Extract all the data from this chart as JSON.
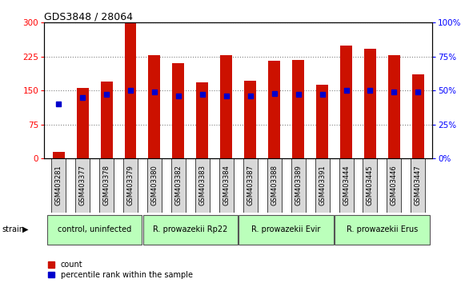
{
  "title": "GDS3848 / 28064",
  "samples": [
    "GSM403281",
    "GSM403377",
    "GSM403378",
    "GSM403379",
    "GSM403380",
    "GSM403382",
    "GSM403383",
    "GSM403384",
    "GSM403387",
    "GSM403388",
    "GSM403389",
    "GSM403391",
    "GSM403444",
    "GSM403445",
    "GSM403446",
    "GSM403447"
  ],
  "counts": [
    15,
    155,
    170,
    298,
    228,
    210,
    168,
    228,
    172,
    215,
    218,
    162,
    250,
    242,
    228,
    185
  ],
  "percentiles": [
    40,
    45,
    47,
    50,
    49,
    46,
    47,
    46,
    46,
    48,
    47,
    47,
    50,
    50,
    49,
    49
  ],
  "groups": [
    {
      "label": "control, uninfected",
      "start": 0,
      "end": 3,
      "color": "#bbffbb"
    },
    {
      "label": "R. prowazekii Rp22",
      "start": 4,
      "end": 7,
      "color": "#bbffbb"
    },
    {
      "label": "R. prowazekii Evir",
      "start": 8,
      "end": 11,
      "color": "#bbffbb"
    },
    {
      "label": "R. prowazekii Erus",
      "start": 12,
      "end": 15,
      "color": "#bbffbb"
    }
  ],
  "bar_color": "#cc1100",
  "dot_color": "#0000cc",
  "left_yticks": [
    0,
    75,
    150,
    225,
    300
  ],
  "right_yticks": [
    0,
    25,
    50,
    75,
    100
  ],
  "ylim_left": [
    0,
    300
  ],
  "ylim_right": [
    0,
    100
  ],
  "legend_count_label": "count",
  "legend_pct_label": "percentile rank within the sample",
  "strain_label": "strain",
  "bar_width": 0.5,
  "bg_gray": "#d8d8d8",
  "title_fontsize": 9,
  "tick_fontsize": 7.5,
  "label_fontsize": 6,
  "group_fontsize": 7,
  "legend_fontsize": 7
}
